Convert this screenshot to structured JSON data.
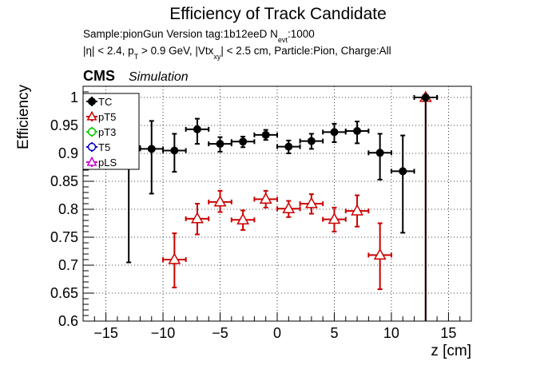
{
  "chart_data": {
    "type": "scatter",
    "title": "Efficiency of Track Candidate",
    "subtitle": {
      "line1_sample": "Sample:pionGun   Version tag:1b12eeD  N",
      "line1_nevt_sub": "evt",
      "line1_nevt_val": ":1000",
      "line2_a": "|η| < 2.4, p",
      "line2_a_sub": "T",
      "line2_b": " > 0.9 GeV, |Vtx",
      "line2_b_sub": "xy",
      "line2_c": "| < 2.5 cm, Particle:Pion, Charge:All"
    },
    "cms_label": "CMS",
    "simulation_label": "Simulation",
    "xlabel": "z [cm]",
    "ylabel": "Efficiency",
    "xlim": [
      -17,
      17
    ],
    "ylim": [
      0.6,
      1.02
    ],
    "xticks": [
      -15,
      -10,
      -5,
      0,
      5,
      10,
      15
    ],
    "xtick_labels": [
      "−15",
      "−10",
      "−5",
      "0",
      "5",
      "10",
      "15"
    ],
    "yticks": [
      0.6,
      0.65,
      0.7,
      0.75,
      0.8,
      0.85,
      0.9,
      0.95,
      1.0
    ],
    "ytick_labels": [
      "0.6",
      "0.65",
      "0.7",
      "0.75",
      "0.8",
      "0.85",
      "0.9",
      "0.95",
      "1"
    ],
    "grid": true,
    "legend_position": "top-left",
    "legend": [
      {
        "name": "TC",
        "color": "#000000",
        "marker": "filled-circle"
      },
      {
        "name": "pT5",
        "color": "#cc0000",
        "marker": "open-triangle"
      },
      {
        "name": "pT3",
        "color": "#00cc00",
        "marker": "open-circle"
      },
      {
        "name": "T5",
        "color": "#0000cc",
        "marker": "open-circle"
      },
      {
        "name": "pLS",
        "color": "#cc00cc",
        "marker": "open-triangle"
      }
    ],
    "series": [
      {
        "name": "TC",
        "color": "#000000",
        "points": [
          {
            "x": -13,
            "y": 0.91,
            "xerr": 1,
            "ylo": 0.705,
            "yhi": 0.975
          },
          {
            "x": -11,
            "y": 0.908,
            "xerr": 1,
            "ylo": 0.828,
            "yhi": 0.958
          },
          {
            "x": -9,
            "y": 0.905,
            "xerr": 1,
            "ylo": 0.867,
            "yhi": 0.935
          },
          {
            "x": -7,
            "y": 0.943,
            "xerr": 1,
            "ylo": 0.917,
            "yhi": 0.962
          },
          {
            "x": -5,
            "y": 0.917,
            "xerr": 1,
            "ylo": 0.903,
            "yhi": 0.929
          },
          {
            "x": -3,
            "y": 0.921,
            "xerr": 1,
            "ylo": 0.911,
            "yhi": 0.93
          },
          {
            "x": -1,
            "y": 0.933,
            "xerr": 1,
            "ylo": 0.924,
            "yhi": 0.942
          },
          {
            "x": 1,
            "y": 0.912,
            "xerr": 1,
            "ylo": 0.9,
            "yhi": 0.923
          },
          {
            "x": 3,
            "y": 0.922,
            "xerr": 1,
            "ylo": 0.908,
            "yhi": 0.935
          },
          {
            "x": 5,
            "y": 0.938,
            "xerr": 1,
            "ylo": 0.92,
            "yhi": 0.953
          },
          {
            "x": 7,
            "y": 0.94,
            "xerr": 1,
            "ylo": 0.918,
            "yhi": 0.957
          },
          {
            "x": 9,
            "y": 0.901,
            "xerr": 1,
            "ylo": 0.853,
            "yhi": 0.935
          },
          {
            "x": 11,
            "y": 0.868,
            "xerr": 1,
            "ylo": 0.758,
            "yhi": 0.932
          },
          {
            "x": 13,
            "y": 1.0,
            "xerr": 1,
            "ylo": 0.6,
            "yhi": 1.0
          }
        ]
      },
      {
        "name": "pT5",
        "color": "#cc0000",
        "points": [
          {
            "x": -9,
            "y": 0.71,
            "xerr": 1,
            "ylo": 0.66,
            "yhi": 0.757
          },
          {
            "x": -7,
            "y": 0.783,
            "xerr": 1,
            "ylo": 0.755,
            "yhi": 0.81
          },
          {
            "x": -5,
            "y": 0.813,
            "xerr": 1,
            "ylo": 0.795,
            "yhi": 0.833
          },
          {
            "x": -3,
            "y": 0.781,
            "xerr": 1,
            "ylo": 0.763,
            "yhi": 0.798
          },
          {
            "x": -1,
            "y": 0.818,
            "xerr": 1,
            "ylo": 0.803,
            "yhi": 0.833
          },
          {
            "x": 1,
            "y": 0.801,
            "xerr": 1,
            "ylo": 0.786,
            "yhi": 0.815
          },
          {
            "x": 3,
            "y": 0.81,
            "xerr": 1,
            "ylo": 0.792,
            "yhi": 0.827
          },
          {
            "x": 5,
            "y": 0.782,
            "xerr": 1,
            "ylo": 0.76,
            "yhi": 0.803
          },
          {
            "x": 7,
            "y": 0.797,
            "xerr": 1,
            "ylo": 0.769,
            "yhi": 0.825
          },
          {
            "x": 9,
            "y": 0.718,
            "xerr": 1,
            "ylo": 0.657,
            "yhi": 0.775
          },
          {
            "x": 13,
            "y": 1.0,
            "xerr": 1,
            "ylo": 0.6,
            "yhi": 1.0
          }
        ]
      }
    ]
  }
}
